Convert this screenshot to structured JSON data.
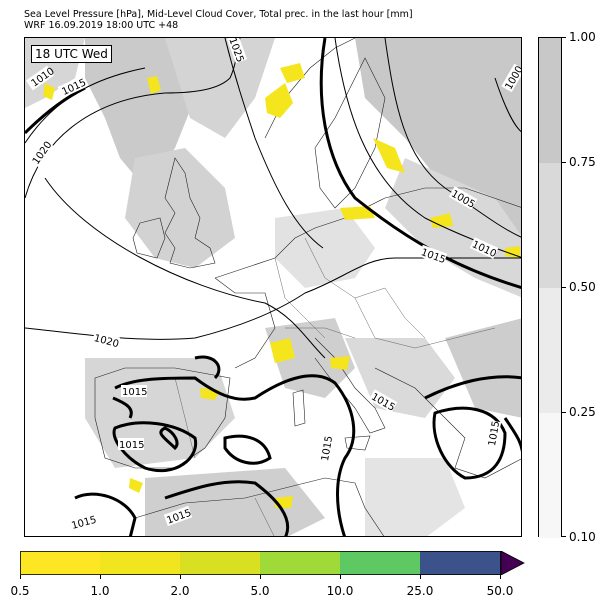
{
  "title": {
    "line1": "Sea Level Pressure [hPa], Mid-Level Cloud Cover, Total prec. in the last hour [mm]",
    "line2": "WRF 16.09.2019 18:00 UTC +48"
  },
  "map": {
    "valid_time_label": "18 UTC Wed",
    "isobar_labels": [
      "1010",
      "1015",
      "1020",
      "1025",
      "1000",
      "1005",
      "1010",
      "1015",
      "1020",
      "1015",
      "1015",
      "1015",
      "1015",
      "1015",
      "1015",
      "1015"
    ],
    "colors": {
      "land_border": "#222222",
      "isobar": "#000000",
      "cloud_light": "#e6e6e6",
      "cloud_mid": "#d2d2d2",
      "cloud_dark": "#c2c2c2",
      "precip": "#f4e51c"
    }
  },
  "cloud_cover_colorbar": {
    "ticks": [
      "0.10",
      "0.25",
      "0.50",
      "0.75",
      "1.00"
    ],
    "colors": [
      "#f7f7f7",
      "#ebebeb",
      "#d9d9d9",
      "#c8c8c8"
    ]
  },
  "precip_colorbar": {
    "ticks": [
      "0.5",
      "1.0",
      "2.0",
      "5.0",
      "10.0",
      "25.0",
      "50.0"
    ],
    "colors": [
      "#fde725",
      "#f0e51e",
      "#d9e021",
      "#a0da39",
      "#5ec962",
      "#2ab07f",
      "#3b528b"
    ],
    "extend_color": "#440154"
  }
}
